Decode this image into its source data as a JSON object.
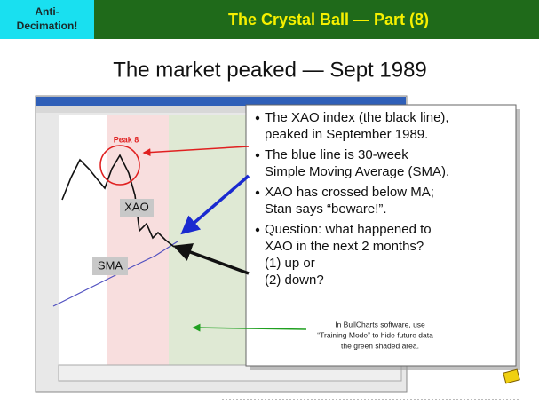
{
  "header": {
    "badge": [
      "Anti-",
      "Decimation!"
    ],
    "title": "The Crystal Ball — Part (8)"
  },
  "subtitle": "The market peaked — Sept 1989",
  "chart_labels": {
    "peak": "Peak 8",
    "xao": "XAO",
    "sma": "SMA"
  },
  "callout": {
    "bullets": [
      [
        "The XAO index (the black line),",
        "peaked in September 1989."
      ],
      [
        "The blue line is 30-week",
        "Simple Moving Average (SMA)."
      ],
      [
        "XAO has crossed below MA;",
        "Stan says “beware!”."
      ],
      [
        "Question: what happened to",
        "XAO in the next 2 months?",
        "(1) up or",
        "(2) down?"
      ]
    ]
  },
  "note": [
    "In BullCharts software, use",
    "“Training Mode” to hide future data —",
    "the green shaded area."
  ]
}
